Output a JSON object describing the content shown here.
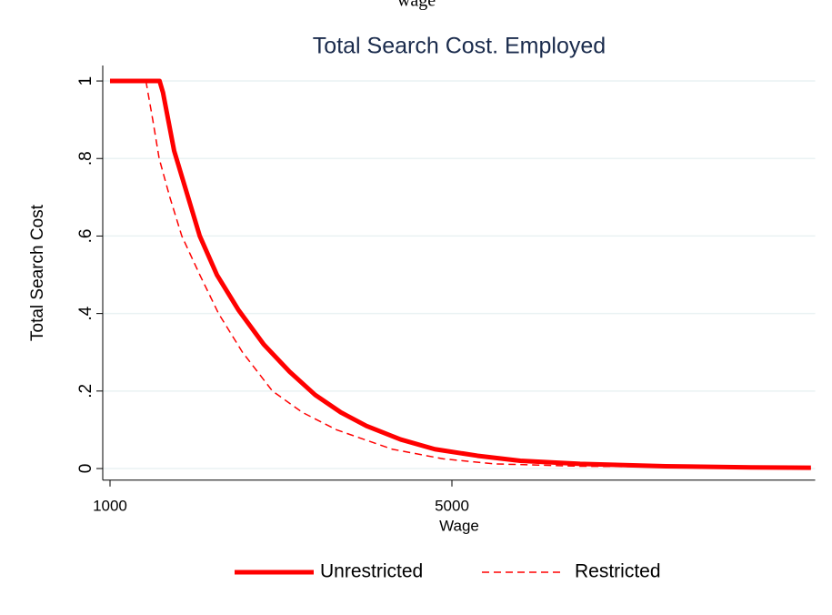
{
  "page_caption": "wage",
  "chart_data": {
    "type": "line",
    "title": "Total Search Cost. Employed",
    "x_label": "Wage",
    "y_label": "Total Search Cost",
    "xlim": [
      915,
      9250
    ],
    "xticks": [
      1000,
      5000
    ],
    "ylim": [
      -0.03,
      1.04
    ],
    "yticks": [
      0,
      {
        "value": 0.2,
        "label": ".2"
      },
      {
        "value": 0.4,
        "label": ".4"
      },
      {
        "value": 0.6,
        "label": ".6"
      },
      {
        "value": 0.8,
        "label": ".8"
      },
      1
    ],
    "grid": true,
    "legend": "bottom",
    "series": [
      {
        "name": "Unrestricted",
        "color": "#ff0000",
        "style": "solid",
        "x": [
          1000,
          1580,
          1620,
          1750,
          1900,
          2050,
          2250,
          2500,
          2800,
          3100,
          3400,
          3700,
          4000,
          4400,
          4800,
          5300,
          5800,
          6500,
          7500,
          8500,
          9200
        ],
        "values": [
          1,
          1,
          0.97,
          0.82,
          0.71,
          0.6,
          0.5,
          0.41,
          0.32,
          0.25,
          0.19,
          0.145,
          0.11,
          0.075,
          0.05,
          0.033,
          0.02,
          0.012,
          0.006,
          0.003,
          0.002
        ]
      },
      {
        "name": "Restricted",
        "color": "#ff0000",
        "style": "dashed",
        "x": [
          1420,
          1500,
          1575,
          1700,
          1840,
          2050,
          2270,
          2550,
          2900,
          3250,
          3650,
          4300,
          4900,
          5500,
          6500,
          7500,
          8500,
          9200
        ],
        "values": [
          1,
          0.9,
          0.8,
          0.7,
          0.6,
          0.5,
          0.4,
          0.3,
          0.2,
          0.145,
          0.1,
          0.05,
          0.025,
          0.012,
          0.006,
          0.004,
          0.002,
          0.001
        ]
      }
    ]
  }
}
